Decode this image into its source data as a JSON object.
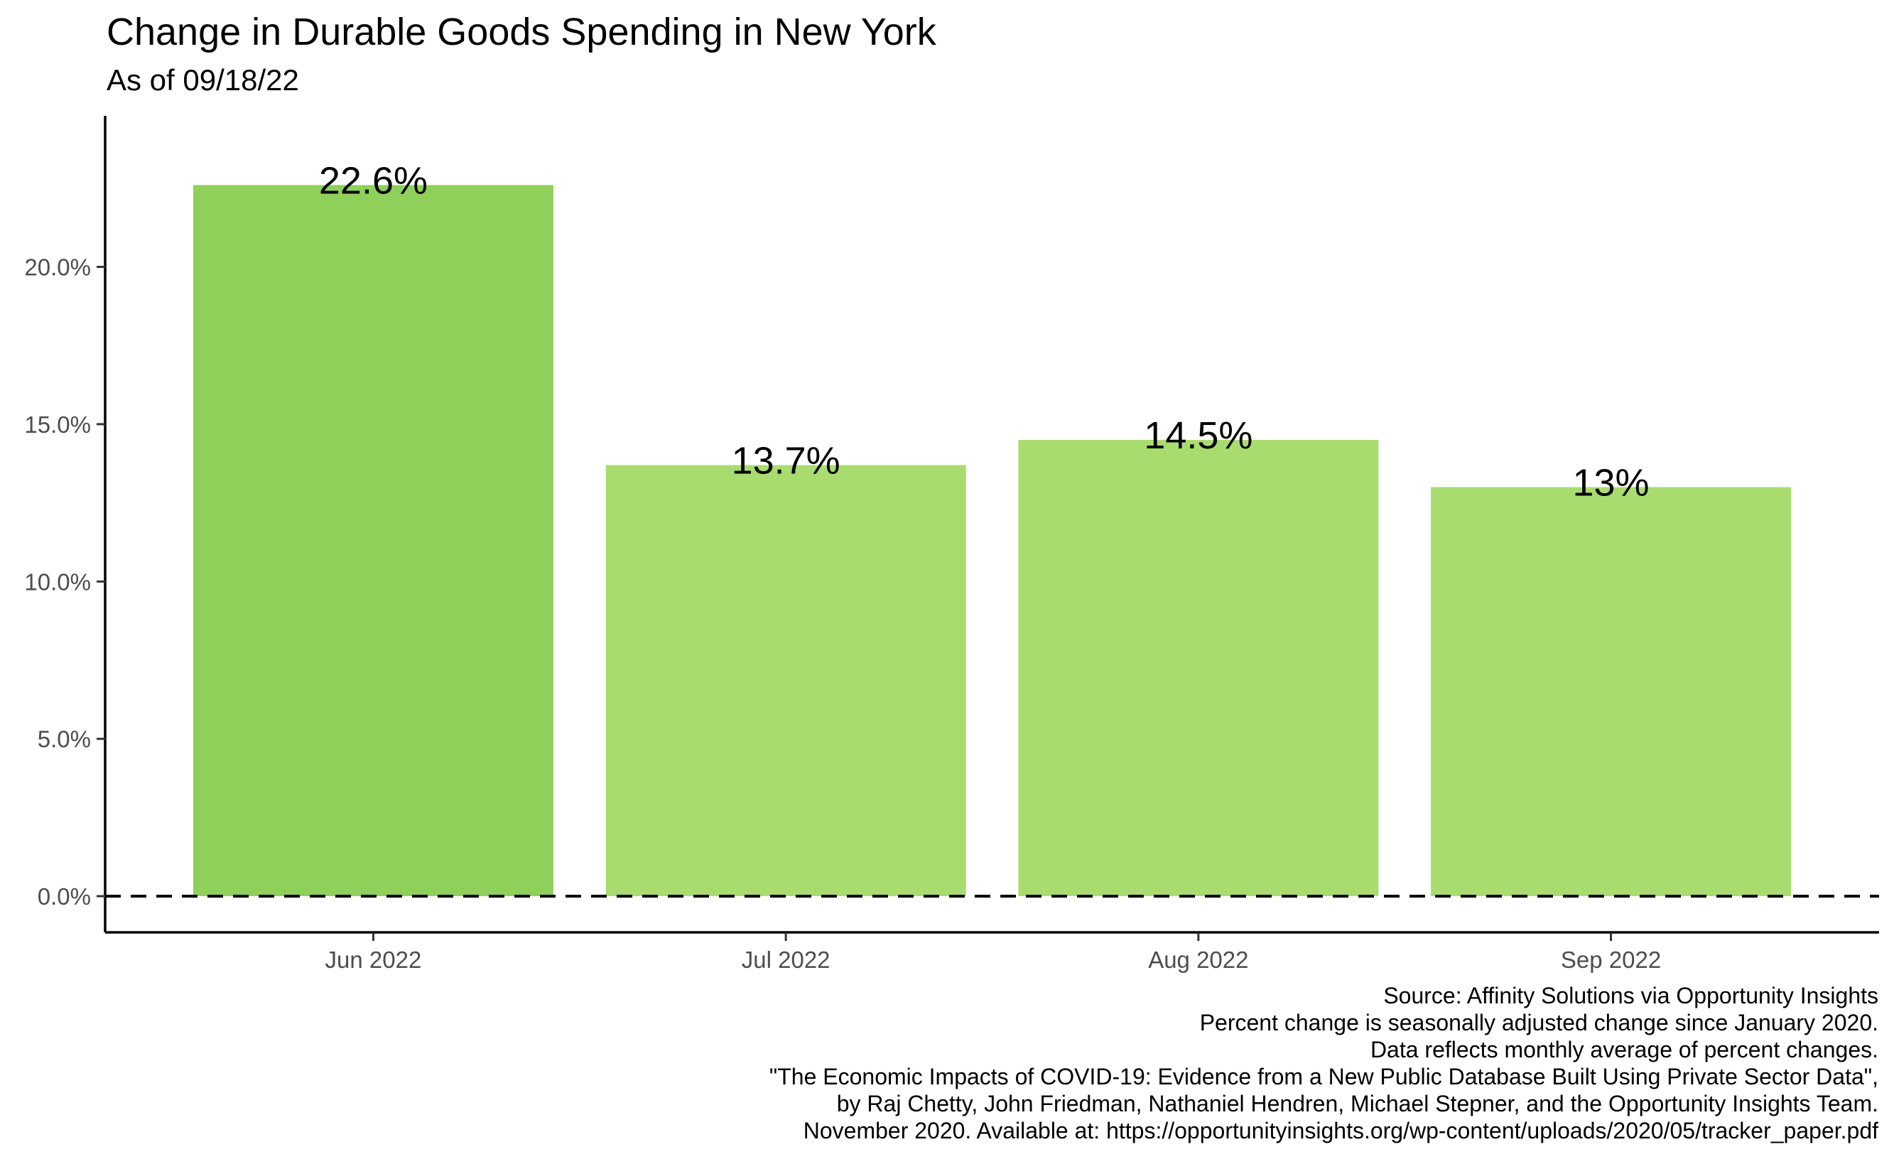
{
  "chart_data": {
    "type": "bar",
    "title": "Change in Durable Goods Spending in New York",
    "subtitle": "As of 09/18/22",
    "categories": [
      "Jun 2022",
      "Jul 2022",
      "Aug 2022",
      "Sep 2022"
    ],
    "values": [
      22.6,
      13.7,
      14.5,
      13.0
    ],
    "data_labels": [
      "22.6%",
      "13.7%",
      "14.5%",
      "13%"
    ],
    "bar_colors": [
      "#8fd05a",
      "#a9dc6f",
      "#a9dc6f",
      "#a9dc6f"
    ],
    "y_ticks": [
      0,
      5,
      10,
      15,
      20
    ],
    "y_tick_labels": [
      "0.0%",
      "5.0%",
      "10.0%",
      "15.0%",
      "20.0%"
    ],
    "ylim": [
      -1.15,
      24.8
    ],
    "reference_line": {
      "y": 0,
      "style": "dashed"
    },
    "xlabel": "",
    "ylabel": "",
    "grid": false
  },
  "caption": [
    "Source: Affinity Solutions via Opportunity Insights",
    "Percent change is seasonally adjusted change since January 2020.",
    "Data reflects monthly average of percent changes.",
    "\"The Economic Impacts of COVID-19: Evidence from a New Public Database Built Using Private Sector Data\",",
    "by Raj Chetty, John Friedman, Nathaniel Hendren, Michael Stepner, and the Opportunity Insights Team.",
    "November 2020. Available at: https://opportunityinsights.org/wp-content/uploads/2020/05/tracker_paper.pdf"
  ]
}
